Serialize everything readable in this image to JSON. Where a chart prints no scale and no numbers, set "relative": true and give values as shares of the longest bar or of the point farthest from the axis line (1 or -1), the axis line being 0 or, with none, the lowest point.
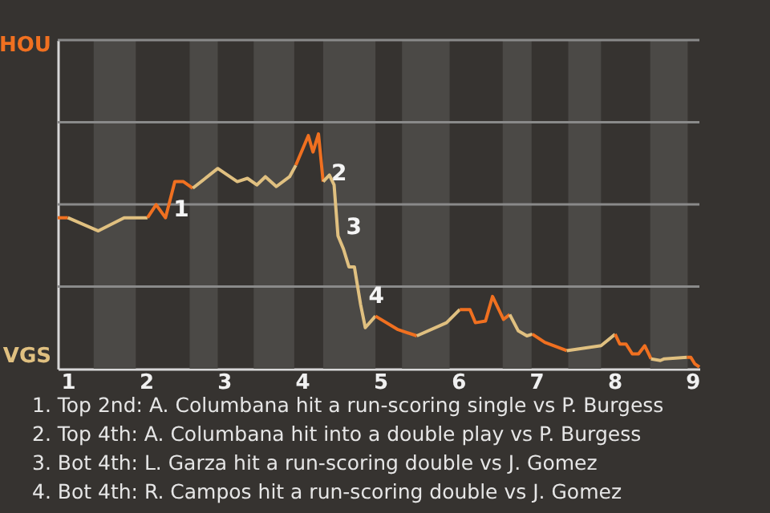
{
  "chart_data": {
    "type": "line",
    "relative": true,
    "xlim": [
      0.87,
      9.09
    ],
    "xticks": [
      1,
      2,
      3,
      4,
      5,
      6,
      7,
      8,
      9
    ],
    "series": [
      {
        "name": "HOU",
        "color": "#f07020",
        "x": [
          0.87,
          1.0
        ],
        "values": [
          0.643,
          0.643
        ]
      },
      {
        "name": "VGS",
        "color": "#e0c080",
        "x": [
          1.0,
          1.39,
          1.72,
          2.02
        ],
        "values": [
          0.643,
          0.587,
          0.643,
          0.643
        ]
      },
      {
        "color": "#f07020",
        "x": [
          2.02,
          2.13,
          2.25,
          2.37,
          2.48,
          2.6
        ],
        "values": [
          0.643,
          0.699,
          0.643,
          0.797,
          0.797,
          0.769
        ]
      },
      {
        "color": "#e0c080",
        "x": [
          2.6,
          2.92,
          3.17,
          3.3,
          3.42,
          3.53,
          3.67,
          3.84,
          3.92
        ],
        "values": [
          0.769,
          0.853,
          0.797,
          0.811,
          0.783,
          0.818,
          0.776,
          0.818,
          0.867
        ]
      },
      {
        "color": "#f07020",
        "x": [
          3.92,
          4.08,
          4.14,
          4.21,
          4.27
        ],
        "values": [
          0.867,
          0.993,
          0.923,
          1,
          0.797
        ]
      },
      {
        "color": "#e0c080",
        "x": [
          4.27,
          4.35,
          4.41,
          4.46,
          4.53,
          4.6,
          4.67,
          4.75,
          4.81,
          4.94
        ],
        "values": [
          0.797,
          0.825,
          0.783,
          0.566,
          0.51,
          0.434,
          0.434,
          0.273,
          0.175,
          0.224
        ]
      },
      {
        "color": "#f07020",
        "x": [
          4.94,
          5.22,
          5.28,
          5.47
        ],
        "values": [
          0.224,
          0.168,
          0.161,
          0.14
        ]
      },
      {
        "color": "#e0c080",
        "x": [
          5.47,
          5.85,
          6.02
        ],
        "values": [
          0.14,
          0.196,
          0.252
        ]
      },
      {
        "color": "#f07020",
        "x": [
          6.02,
          6.15,
          6.22,
          6.35,
          6.44,
          6.58,
          6.66
        ],
        "values": [
          0.252,
          0.252,
          0.196,
          0.203,
          0.308,
          0.21,
          0.231
        ]
      },
      {
        "color": "#e0c080",
        "x": [
          6.66,
          6.77,
          6.88,
          6.95
        ],
        "values": [
          0.231,
          0.161,
          0.14,
          0.147
        ]
      },
      {
        "color": "#f07020",
        "x": [
          6.95,
          7.11,
          7.39
        ],
        "values": [
          0.147,
          0.112,
          0.077
        ]
      },
      {
        "color": "#e0c080",
        "x": [
          7.39,
          7.83,
          8.01
        ],
        "values": [
          0.077,
          0.098,
          0.147
        ]
      },
      {
        "color": "#f07020",
        "x": [
          8.01,
          8.07,
          8.15,
          8.23,
          8.31,
          8.39,
          8.47
        ],
        "values": [
          0.147,
          0.105,
          0.105,
          0.063,
          0.063,
          0.098,
          0.042
        ]
      },
      {
        "color": "#e0c080",
        "x": [
          8.47,
          8.59,
          8.64,
          8.93
        ],
        "values": [
          0.042,
          0.035,
          0.042,
          0.049
        ]
      },
      {
        "color": "#f07020",
        "x": [
          8.93,
          8.98,
          9.03,
          9.09
        ],
        "values": [
          0.049,
          0.049,
          0.021,
          0.007
        ]
      }
    ],
    "ref_lines": [
      {
        "axis": "y",
        "value": 0.35,
        "color": "#8a8a8a"
      },
      {
        "axis": "y",
        "value": 0.7,
        "color": "#8a8a8a"
      },
      {
        "axis": "y",
        "value": 1.05,
        "color": "#8a8a8a"
      },
      {
        "axis": "y",
        "value": 1.4,
        "color": "#8a8a8a"
      }
    ],
    "bands": [
      {
        "axis": "x",
        "from": 1.33,
        "to": 1.87,
        "color": "#4b4946"
      },
      {
        "axis": "x",
        "from": 2.56,
        "to": 2.92,
        "color": "#4b4946"
      },
      {
        "axis": "x",
        "from": 3.38,
        "to": 3.9,
        "color": "#4b4946"
      },
      {
        "axis": "x",
        "from": 4.27,
        "to": 4.94,
        "color": "#4b4946"
      },
      {
        "axis": "x",
        "from": 5.28,
        "to": 5.89,
        "color": "#4b4946"
      },
      {
        "axis": "x",
        "from": 6.57,
        "to": 6.94,
        "color": "#4b4946"
      },
      {
        "axis": "x",
        "from": 7.41,
        "to": 7.83,
        "color": "#4b4946"
      },
      {
        "axis": "x",
        "from": 8.46,
        "to": 8.94,
        "color": "#4b4946"
      }
    ],
    "annotations": [
      {
        "text": "1",
        "x": 2.25,
        "y": 0.643
      },
      {
        "text": "2",
        "x": 4.27,
        "y": 0.797
      },
      {
        "text": "3",
        "x": 4.46,
        "y": 0.566
      },
      {
        "text": "4",
        "x": 4.75,
        "y": 0.273
      },
      "1. Top 2nd: A. Columbana hit a run-scoring single vs P. Burgess",
      "2. Top 4th: A. Columbana hit into a double play vs P. Burgess",
      "3. Bot 4th: L. Garza hit a run-scoring double vs J. Gomez",
      "4. Bot 4th: R. Campos hit a run-scoring double vs J. Gomez"
    ]
  }
}
